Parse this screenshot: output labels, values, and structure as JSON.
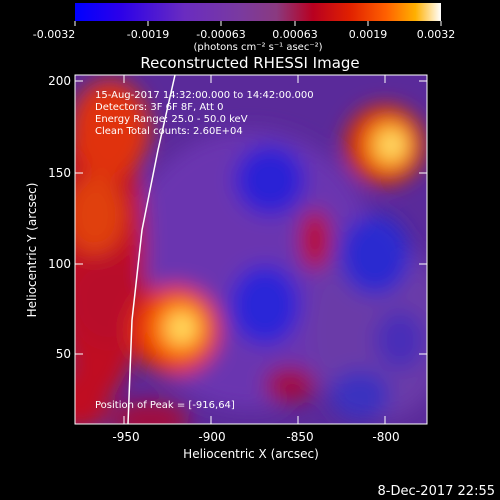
{
  "colorbar": {
    "tick_labels": [
      "-0.0032",
      "-0.0019",
      "-0.00063",
      "0.00063",
      "0.0019",
      "0.0032"
    ],
    "units": "(photons cm⁻² s⁻¹ asec⁻²)",
    "colormap": [
      "#0000ff",
      "#3000e0",
      "#6a2cc0",
      "#7a3aa0",
      "#8a3a80",
      "#b80020",
      "#e02000",
      "#ff6000",
      "#ffb000",
      "#ffff80",
      "#ffffff"
    ]
  },
  "title": "Reconstructed RHESSI Image",
  "info": {
    "line1": "15-Aug-2017 14:32:00.000 to 14:42:00.000",
    "line2": "Detectors: 3F 6F 8F, Att 0",
    "line3": "Energy Range: 25.0 - 50.0 keV",
    "line4": "Clean     Total counts: 2.60E+04"
  },
  "peak_label": "Position of Peak = [-916,64]",
  "axes": {
    "xlabel": "Heliocentric X (arcsec)",
    "ylabel": "Heliocentric Y (arcsec)",
    "x_ticks": [
      "-950",
      "-900",
      "-850",
      "-800"
    ],
    "y_ticks": [
      "50",
      "100",
      "150",
      "200"
    ],
    "x_range": [
      -975,
      -785
    ],
    "y_range": [
      10,
      205
    ]
  },
  "footer_date": "8-Dec-2017 22:55"
}
